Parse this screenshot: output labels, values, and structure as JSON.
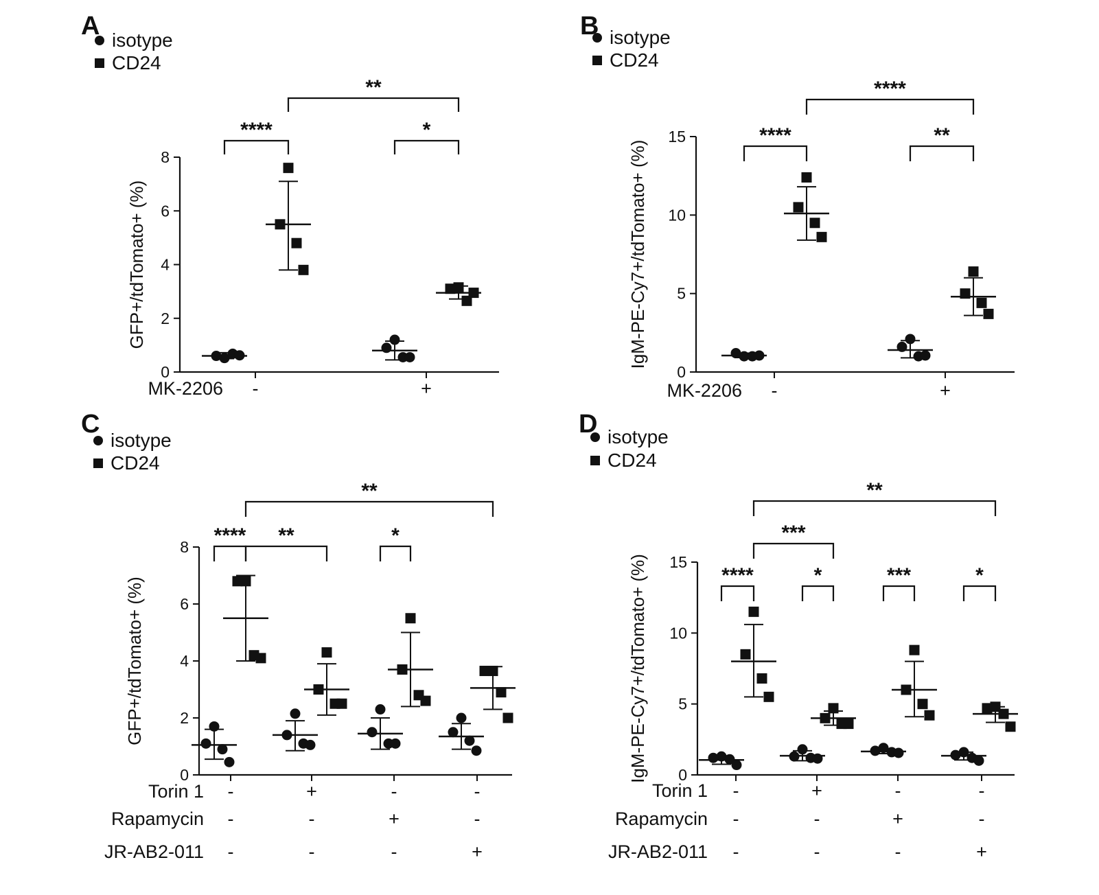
{
  "chart_data": [
    {
      "type": "scatter",
      "panel": "A",
      "ylabel": "GFP+/tdTomato+ (%)",
      "ylim": [
        0,
        8
      ],
      "yticks": [
        "0",
        "2",
        "4",
        "6",
        "8"
      ],
      "legend": [
        {
          "marker": "circle",
          "label": "isotype"
        },
        {
          "marker": "square",
          "label": "CD24"
        }
      ],
      "conditions": [
        {
          "label": "MK-2206",
          "values": [
            "-",
            "+"
          ]
        }
      ],
      "groups": [
        {
          "series": "isotype",
          "treatment": "-",
          "points": [
            0.52,
            0.6,
            0.68,
            0.62
          ],
          "mean": 0.6,
          "sd_low": 0.5,
          "sd_high": 0.72
        },
        {
          "series": "CD24",
          "treatment": "-",
          "points": [
            7.6,
            5.5,
            4.8,
            3.8
          ],
          "mean": 5.5,
          "sd_low": 3.8,
          "sd_high": 7.1
        },
        {
          "series": "isotype",
          "treatment": "+",
          "points": [
            1.2,
            0.9,
            0.55,
            0.55
          ],
          "mean": 0.8,
          "sd_low": 0.45,
          "sd_high": 1.15
        },
        {
          "series": "CD24",
          "treatment": "+",
          "points": [
            3.15,
            3.1,
            2.65,
            2.95
          ],
          "mean": 2.95,
          "sd_low": 2.72,
          "sd_high": 3.2
        }
      ],
      "significance": [
        {
          "from": 0,
          "to": 1,
          "level": 1,
          "stars": "****"
        },
        {
          "from": 2,
          "to": 3,
          "level": 1,
          "stars": "*"
        },
        {
          "from": 1,
          "to": 3,
          "level": 2,
          "stars": "**"
        }
      ]
    },
    {
      "type": "scatter",
      "panel": "B",
      "ylabel": "IgM-PE-Cy7+/tdTomato+ (%)",
      "ylim": [
        0,
        15
      ],
      "yticks": [
        "0",
        "5",
        "10",
        "15"
      ],
      "legend": [
        {
          "marker": "circle",
          "label": "isotype"
        },
        {
          "marker": "square",
          "label": "CD24"
        }
      ],
      "conditions": [
        {
          "label": "MK-2206",
          "values": [
            "-",
            "+"
          ]
        }
      ],
      "groups": [
        {
          "series": "isotype",
          "treatment": "-",
          "points": [
            1.0,
            1.2,
            1.0,
            1.05
          ],
          "mean": 1.05,
          "sd_low": 0.92,
          "sd_high": 1.2
        },
        {
          "series": "CD24",
          "treatment": "-",
          "points": [
            12.4,
            10.5,
            9.5,
            8.6
          ],
          "mean": 10.1,
          "sd_low": 8.4,
          "sd_high": 11.8
        },
        {
          "series": "isotype",
          "treatment": "+",
          "points": [
            2.1,
            1.6,
            1.0,
            1.05
          ],
          "mean": 1.4,
          "sd_low": 0.9,
          "sd_high": 2.0
        },
        {
          "series": "CD24",
          "treatment": "+",
          "points": [
            6.4,
            5.0,
            4.4,
            3.7
          ],
          "mean": 4.8,
          "sd_low": 3.6,
          "sd_high": 6.0
        }
      ],
      "significance": [
        {
          "from": 0,
          "to": 1,
          "level": 1,
          "stars": "****"
        },
        {
          "from": 2,
          "to": 3,
          "level": 1,
          "stars": "**"
        },
        {
          "from": 1,
          "to": 3,
          "level": 2,
          "stars": "****"
        }
      ]
    },
    {
      "type": "scatter",
      "panel": "C",
      "ylabel": "GFP+/tdTomato+ (%)",
      "ylim": [
        0,
        8
      ],
      "yticks": [
        "0",
        "2",
        "4",
        "6",
        "8"
      ],
      "legend": [
        {
          "marker": "circle",
          "label": "isotype"
        },
        {
          "marker": "square",
          "label": "CD24"
        }
      ],
      "conditions": [
        {
          "label": "Torin 1",
          "values": [
            "-",
            "+",
            "-",
            "-"
          ]
        },
        {
          "label": "Rapamycin",
          "values": [
            "-",
            "-",
            "+",
            "-"
          ]
        },
        {
          "label": "JR-AB2-011",
          "values": [
            "-",
            "-",
            "-",
            "+"
          ]
        }
      ],
      "groups": [
        {
          "series": "isotype",
          "treatment": 1,
          "points": [
            1.7,
            1.1,
            0.9,
            0.45
          ],
          "mean": 1.05,
          "sd_low": 0.55,
          "sd_high": 1.6
        },
        {
          "series": "CD24",
          "treatment": 1,
          "points": [
            6.8,
            6.8,
            4.2,
            4.1
          ],
          "mean": 5.5,
          "sd_low": 4.0,
          "sd_high": 7.0
        },
        {
          "series": "isotype",
          "treatment": 2,
          "points": [
            2.15,
            1.4,
            1.1,
            1.05
          ],
          "mean": 1.4,
          "sd_low": 0.85,
          "sd_high": 1.9
        },
        {
          "series": "CD24",
          "treatment": 2,
          "points": [
            4.3,
            3.0,
            2.5,
            2.5
          ],
          "mean": 3.0,
          "sd_low": 2.1,
          "sd_high": 3.9
        },
        {
          "series": "isotype",
          "treatment": 3,
          "points": [
            2.3,
            1.5,
            1.1,
            1.1
          ],
          "mean": 1.45,
          "sd_low": 0.9,
          "sd_high": 2.0
        },
        {
          "series": "CD24",
          "treatment": 3,
          "points": [
            5.5,
            3.7,
            2.8,
            2.6
          ],
          "mean": 3.7,
          "sd_low": 2.4,
          "sd_high": 5.0
        },
        {
          "series": "isotype",
          "treatment": 4,
          "points": [
            2.0,
            1.5,
            1.2,
            0.85
          ],
          "mean": 1.35,
          "sd_low": 0.9,
          "sd_high": 1.8
        },
        {
          "series": "CD24",
          "treatment": 4,
          "points": [
            3.65,
            3.65,
            2.9,
            2.0
          ],
          "mean": 3.05,
          "sd_low": 2.3,
          "sd_high": 3.8
        }
      ],
      "significance": [
        {
          "from": 0,
          "to": 1,
          "level": 1,
          "stars": "****"
        },
        {
          "from": 1,
          "to": 3,
          "level": 1,
          "stars": "**"
        },
        {
          "from": 4,
          "to": 5,
          "level": 1,
          "stars": "*"
        },
        {
          "from": 1,
          "to": 7,
          "level": 2,
          "stars": "**"
        }
      ]
    },
    {
      "type": "scatter",
      "panel": "D",
      "ylabel": "IgM-PE-Cy7+/tdTomato+ (%)",
      "ylim": [
        0,
        15
      ],
      "yticks": [
        "0",
        "5",
        "10",
        "15"
      ],
      "legend": [
        {
          "marker": "circle",
          "label": "isotype"
        },
        {
          "marker": "square",
          "label": "CD24"
        }
      ],
      "conditions": [
        {
          "label": "Torin 1",
          "values": [
            "-",
            "+",
            "-",
            "-"
          ]
        },
        {
          "label": "Rapamycin",
          "values": [
            "-",
            "-",
            "+",
            "-"
          ]
        },
        {
          "label": "JR-AB2-011",
          "values": [
            "-",
            "-",
            "-",
            "+"
          ]
        }
      ],
      "groups": [
        {
          "series": "isotype",
          "treatment": 1,
          "points": [
            1.3,
            1.2,
            1.1,
            0.7
          ],
          "mean": 1.05,
          "sd_low": 0.75,
          "sd_high": 1.35
        },
        {
          "series": "CD24",
          "treatment": 1,
          "points": [
            11.5,
            8.5,
            6.8,
            5.5
          ],
          "mean": 8.0,
          "sd_low": 5.5,
          "sd_high": 10.6
        },
        {
          "series": "isotype",
          "treatment": 2,
          "points": [
            1.8,
            1.3,
            1.2,
            1.15
          ],
          "mean": 1.35,
          "sd_low": 1.0,
          "sd_high": 1.7
        },
        {
          "series": "CD24",
          "treatment": 2,
          "points": [
            4.7,
            4.0,
            3.6,
            3.6
          ],
          "mean": 4.0,
          "sd_low": 3.5,
          "sd_high": 4.5
        },
        {
          "series": "isotype",
          "treatment": 3,
          "points": [
            1.9,
            1.7,
            1.6,
            1.55
          ],
          "mean": 1.65,
          "sd_low": 1.5,
          "sd_high": 1.85
        },
        {
          "series": "CD24",
          "treatment": 3,
          "points": [
            8.8,
            6.0,
            5.0,
            4.2
          ],
          "mean": 6.0,
          "sd_low": 4.1,
          "sd_high": 8.0
        },
        {
          "series": "isotype",
          "treatment": 4,
          "points": [
            1.6,
            1.4,
            1.2,
            1.0
          ],
          "mean": 1.35,
          "sd_low": 1.05,
          "sd_high": 1.6
        },
        {
          "series": "CD24",
          "treatment": 4,
          "points": [
            4.8,
            4.7,
            4.3,
            3.4
          ],
          "mean": 4.3,
          "sd_low": 3.7,
          "sd_high": 4.8
        }
      ],
      "significance": [
        {
          "from": 0,
          "to": 1,
          "level": 1,
          "stars": "****"
        },
        {
          "from": 2,
          "to": 3,
          "level": 1,
          "stars": "*"
        },
        {
          "from": 4,
          "to": 5,
          "level": 1,
          "stars": "***"
        },
        {
          "from": 6,
          "to": 7,
          "level": 1,
          "stars": "*"
        },
        {
          "from": 1,
          "to": 3,
          "level": 2,
          "stars": "***"
        },
        {
          "from": 1,
          "to": 7,
          "level": 3,
          "stars": "**"
        }
      ]
    }
  ]
}
